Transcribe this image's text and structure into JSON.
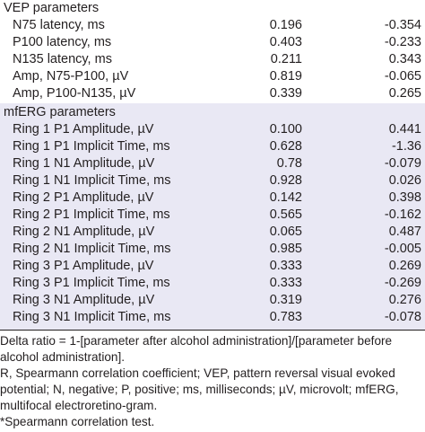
{
  "vep": {
    "title": "VEP parameters",
    "rows": [
      {
        "label": "N75 latency, ms",
        "a": "0.196",
        "b": "-0.354"
      },
      {
        "label": "P100 latency, ms",
        "a": "0.403",
        "b": "-0.233"
      },
      {
        "label": "N135 latency, ms",
        "a": "0.211",
        "b": "0.343"
      },
      {
        "label": "Amp, N75-P100, µV",
        "a": "0.819",
        "b": "-0.065"
      },
      {
        "label": "Amp, P100-N135, µV",
        "a": "0.339",
        "b": "0.265"
      }
    ]
  },
  "mferg": {
    "title": "mfERG parameters",
    "rows": [
      {
        "label": "Ring 1 P1 Amplitude, µV",
        "a": "0.100",
        "b": "0.441"
      },
      {
        "label": "Ring 1 P1 Implicit Time, ms",
        "a": "0.628",
        "b": "-1.36"
      },
      {
        "label": "Ring 1 N1 Amplitude, µV",
        "a": "0.78",
        "b": "-0.079"
      },
      {
        "label": "Ring 1 N1 Implicit Time, ms",
        "a": "0.928",
        "b": "0.026"
      },
      {
        "label": "Ring 2 P1 Amplitude, µV",
        "a": "0.142",
        "b": "0.398"
      },
      {
        "label": "Ring 2 P1 Implicit Time, ms",
        "a": "0.565",
        "b": "-0.162"
      },
      {
        "label": "Ring 2 N1 Amplitude, µV",
        "a": "0.065",
        "b": "0.487"
      },
      {
        "label": "Ring 2 N1 Implicit Time, ms",
        "a": "0.985",
        "b": "-0.005"
      },
      {
        "label": "Ring 3 P1 Amplitude, µV",
        "a": "0.333",
        "b": "0.269"
      },
      {
        "label": "Ring 3 P1 Implicit Time, ms",
        "a": "0.333",
        "b": "-0.269"
      },
      {
        "label": "Ring 3 N1 Amplitude, µV",
        "a": "0.319",
        "b": "0.276"
      },
      {
        "label": "Ring 3 N1 Implicit Time, ms",
        "a": "0.783",
        "b": "-0.078"
      }
    ]
  },
  "footnotes": [
    "Delta ratio = 1-[parameter after alcohol administration]/[parameter before alcohol administration].",
    "R, Spearmann correlation coefficient; VEP, pattern reversal visual evoked potential; N, negative; P, positive; ms, milliseconds; µV, microvolt; mfERG, multifocal electroretino-gram.",
    "*Spearmann correlation test."
  ],
  "colors": {
    "text": "#231f20",
    "band": "#e9e8f4",
    "rule": "#231f20"
  }
}
